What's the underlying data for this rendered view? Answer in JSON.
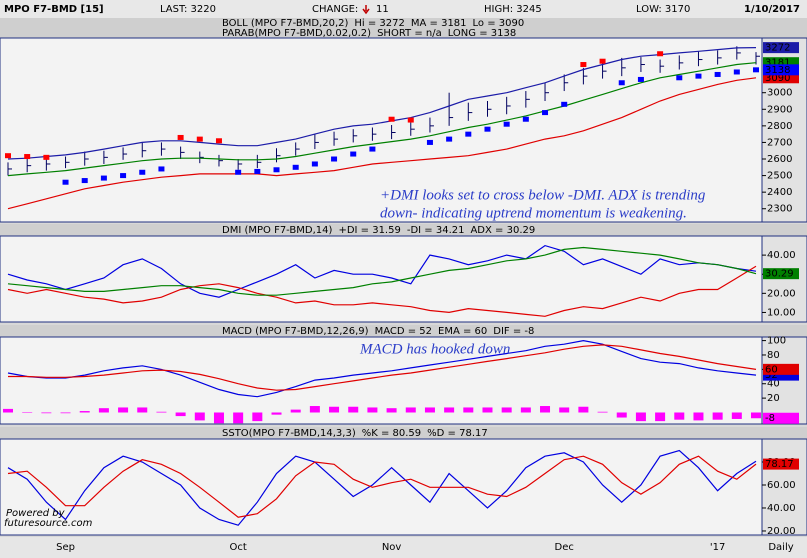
{
  "header": {
    "symbol": "MPO F7-BMD [15]",
    "last": "LAST: 3220",
    "change_label": "CHANGE:",
    "change": "11",
    "high": "HIGH: 3245",
    "low": "LOW: 3170",
    "date": "1/10/2017"
  },
  "footer": {
    "x_unit": "Daily",
    "watermark": [
      "Powered by",
      "futuresource.com"
    ]
  },
  "chart_data": [
    {
      "type": "ohlc",
      "legend_titles": [
        "BOLL (MPO F7-BMD,20,2)",
        "PARAB(MPO F7-BMD,0.02,0.2)"
      ],
      "bar_color": "#000060",
      "high": [
        2580,
        2600,
        2610,
        2615,
        2645,
        2650,
        2670,
        2700,
        2700,
        2675,
        2645,
        2625,
        2600,
        2625,
        2665,
        2700,
        2750,
        2765,
        2780,
        2790,
        2805,
        2820,
        2850,
        3000,
        2940,
        2950,
        2975,
        3010,
        3060,
        3110,
        3150,
        3180,
        3210,
        3215,
        3200,
        3225,
        3250,
        3255,
        3280,
        3245
      ],
      "low": [
        2500,
        2520,
        2530,
        2545,
        2560,
        2570,
        2595,
        2610,
        2620,
        2600,
        2575,
        2555,
        2535,
        2545,
        2580,
        2620,
        2660,
        2680,
        2700,
        2710,
        2720,
        2740,
        2760,
        2800,
        2830,
        2855,
        2870,
        2910,
        2950,
        3010,
        3050,
        3085,
        3100,
        3125,
        3120,
        3140,
        3160,
        3170,
        3200,
        3170
      ],
      "close": [
        2540,
        2560,
        2570,
        2580,
        2600,
        2610,
        2630,
        2650,
        2660,
        2640,
        2610,
        2590,
        2570,
        2580,
        2620,
        2660,
        2700,
        2720,
        2740,
        2750,
        2760,
        2780,
        2800,
        2850,
        2880,
        2900,
        2920,
        2960,
        3000,
        3060,
        3100,
        3130,
        3150,
        3170,
        3160,
        3180,
        3200,
        3210,
        3240,
        3220
      ],
      "ylim": [
        2220,
        3330
      ],
      "yticks": [
        2300,
        2400,
        2500,
        2600,
        2700,
        2800,
        2900,
        3000
      ],
      "series": [
        {
          "name": "Hi = 3272",
          "color": "#1c1ca8",
          "style": "line",
          "row": 0,
          "badge": true,
          "values": [
            2600,
            2605,
            2615,
            2625,
            2640,
            2660,
            2680,
            2700,
            2710,
            2710,
            2700,
            2690,
            2680,
            2680,
            2700,
            2720,
            2750,
            2780,
            2800,
            2810,
            2830,
            2850,
            2880,
            2920,
            2960,
            2980,
            3000,
            3030,
            3060,
            3100,
            3140,
            3170,
            3200,
            3220,
            3230,
            3240,
            3250,
            3260,
            3270,
            3272
          ]
        },
        {
          "name": "MA = 3181",
          "color": "#008000",
          "style": "line",
          "row": 0,
          "badge": true,
          "values": [
            2500,
            2510,
            2520,
            2530,
            2545,
            2560,
            2575,
            2590,
            2600,
            2605,
            2605,
            2600,
            2595,
            2595,
            2600,
            2615,
            2635,
            2655,
            2675,
            2690,
            2705,
            2720,
            2740,
            2765,
            2790,
            2810,
            2835,
            2860,
            2890,
            2920,
            2955,
            2990,
            3025,
            3060,
            3090,
            3110,
            3130,
            3150,
            3170,
            3181
          ]
        },
        {
          "name": "Lo = 3090",
          "color": "#e00000",
          "style": "line",
          "row": 0,
          "badge": true,
          "values": [
            2300,
            2330,
            2360,
            2390,
            2420,
            2440,
            2460,
            2475,
            2490,
            2500,
            2510,
            2510,
            2510,
            2510,
            2500,
            2510,
            2520,
            2530,
            2550,
            2570,
            2580,
            2590,
            2600,
            2610,
            2620,
            2640,
            2660,
            2690,
            2720,
            2740,
            2770,
            2810,
            2850,
            2900,
            2950,
            2990,
            3020,
            3050,
            3075,
            3090
          ]
        },
        {
          "name": "SHORT = n/a",
          "color": "#ff0000",
          "style": "dots",
          "row": 1,
          "badge": false,
          "values": [
            2620,
            2615,
            2610,
            null,
            null,
            null,
            null,
            null,
            null,
            2730,
            2720,
            2710,
            null,
            null,
            null,
            null,
            null,
            null,
            null,
            null,
            2840,
            2835,
            null,
            null,
            null,
            null,
            null,
            null,
            null,
            null,
            3170,
            3190,
            null,
            null,
            3235,
            null,
            null,
            null,
            null,
            null
          ]
        },
        {
          "name": "LONG = 3138",
          "color": "#0000ff",
          "style": "dots",
          "row": 1,
          "badge": true,
          "values": [
            null,
            null,
            null,
            2460,
            2470,
            2485,
            2500,
            2520,
            2540,
            null,
            null,
            null,
            2520,
            2525,
            2535,
            2550,
            2570,
            2600,
            2630,
            2660,
            null,
            null,
            2700,
            2720,
            2750,
            2780,
            2810,
            2840,
            2880,
            2930,
            null,
            null,
            3060,
            3080,
            null,
            3090,
            3100,
            3110,
            3125,
            3138
          ]
        }
      ],
      "annotation": [
        "+DMI looks set to cross below -DMI. ADX is trending",
        "down- indicating uptrend momentum is weakening."
      ]
    },
    {
      "type": "line",
      "legend_titles": [
        "DMI (MPO F7-BMD,14)"
      ],
      "ylim": [
        5,
        50
      ],
      "yticks": [
        {
          "value": 10,
          "label": "10.00"
        },
        {
          "value": 20,
          "label": "20.00"
        },
        {
          "value": 30,
          "label": "30.00"
        },
        {
          "value": 40,
          "label": "40.00"
        }
      ],
      "series": [
        {
          "name": "+DI = 31.59",
          "color": "#0000e0",
          "style": "line",
          "row": 0,
          "badge": false,
          "values": [
            30,
            27,
            25,
            22,
            25,
            28,
            35,
            38,
            33,
            25,
            20,
            18,
            22,
            26,
            30,
            35,
            28,
            32,
            30,
            30,
            28,
            25,
            40,
            38,
            35,
            37,
            40,
            38,
            45,
            42,
            35,
            38,
            34,
            30,
            38,
            35,
            36,
            35,
            33,
            31.59
          ]
        },
        {
          "name": "-DI = 34.21",
          "color": "#e00000",
          "style": "line",
          "row": 0,
          "badge": false,
          "values": [
            22,
            20,
            22,
            20,
            18,
            17,
            15,
            16,
            18,
            22,
            24,
            25,
            23,
            20,
            18,
            15,
            16,
            14,
            14,
            15,
            14,
            13,
            11,
            10,
            12,
            11,
            10,
            9,
            8,
            11,
            13,
            12,
            15,
            18,
            16,
            20,
            22,
            22,
            28,
            34.21
          ]
        },
        {
          "name": "ADX = 30.29",
          "color": "#008000",
          "style": "line",
          "row": 0,
          "badge": true,
          "values": [
            25,
            24,
            23,
            22,
            21,
            21,
            22,
            23,
            24,
            24,
            23,
            22,
            20,
            19,
            19,
            20,
            21,
            22,
            23,
            25,
            26,
            28,
            30,
            32,
            33,
            35,
            37,
            38,
            40,
            43,
            44,
            43,
            42,
            41,
            40,
            38,
            36,
            35,
            33,
            30.29
          ]
        }
      ]
    },
    {
      "type": "line",
      "legend_titles": [
        "MACD (MPO F7-BMD,12,26,9)"
      ],
      "ylim": [
        -16,
        105
      ],
      "yticks": [
        20,
        40,
        60,
        80,
        100
      ],
      "series": [
        {
          "name": "MACD = 52",
          "color": "#0000e0",
          "style": "line",
          "row": 0,
          "badge": true,
          "values": [
            55,
            50,
            48,
            48,
            52,
            58,
            62,
            65,
            60,
            52,
            42,
            32,
            25,
            22,
            28,
            36,
            45,
            48,
            52,
            55,
            58,
            62,
            66,
            70,
            74,
            78,
            82,
            86,
            92,
            95,
            100,
            95,
            85,
            75,
            70,
            68,
            62,
            58,
            55,
            52
          ]
        },
        {
          "name": "EMA = 60",
          "color": "#e00000",
          "style": "line",
          "row": 0,
          "badge": true,
          "values": [
            50,
            50,
            49,
            49,
            50,
            52,
            55,
            58,
            59,
            57,
            53,
            47,
            40,
            34,
            31,
            32,
            36,
            40,
            44,
            48,
            52,
            55,
            59,
            63,
            67,
            71,
            75,
            79,
            83,
            88,
            92,
            94,
            92,
            87,
            82,
            78,
            73,
            68,
            64,
            60
          ]
        },
        {
          "name": "DIF = -8",
          "color": "#ff00ff",
          "style": "bar",
          "row": 0,
          "badge": true,
          "values": [
            5,
            0,
            -1,
            -1,
            2,
            6,
            7,
            7,
            1,
            -5,
            -11,
            -15,
            -15,
            -12,
            -3,
            4,
            9,
            8,
            8,
            7,
            6,
            7,
            7,
            7,
            7,
            7,
            7,
            7,
            9,
            7,
            8,
            1,
            -7,
            -12,
            -12,
            -10,
            -11,
            -10,
            -9,
            -8
          ]
        }
      ],
      "annotation": [
        "MACD has hooked down"
      ]
    },
    {
      "type": "line",
      "legend_titles": [
        "SSTO(MPO F7-BMD,14,3,3)"
      ],
      "categories": [
        null,
        null,
        null,
        "Sep",
        null,
        null,
        null,
        null,
        null,
        null,
        null,
        null,
        "Oct",
        null,
        null,
        null,
        null,
        null,
        null,
        null,
        "Nov",
        null,
        null,
        null,
        null,
        null,
        null,
        null,
        null,
        "Dec",
        null,
        null,
        null,
        null,
        null,
        null,
        null,
        "'17",
        null,
        null
      ],
      "ylim": [
        16.5,
        100
      ],
      "yticks": [
        {
          "value": 20,
          "label": "20.00"
        },
        {
          "value": 40,
          "label": "40.00"
        },
        {
          "value": 60,
          "label": "60.00"
        },
        {
          "value": 80,
          "label": "80.00"
        }
      ],
      "series": [
        {
          "name": "%K = 80.59",
          "color": "#0000e0",
          "style": "line",
          "row": 0,
          "badge": false,
          "values": [
            75,
            65,
            45,
            30,
            55,
            75,
            85,
            80,
            70,
            60,
            40,
            30,
            25,
            45,
            70,
            85,
            80,
            65,
            50,
            60,
            75,
            60,
            45,
            70,
            55,
            40,
            55,
            75,
            85,
            88,
            80,
            60,
            45,
            60,
            85,
            90,
            75,
            55,
            70,
            80.59
          ]
        },
        {
          "name": "%D = 78.17",
          "color": "#e00000",
          "style": "line",
          "row": 0,
          "badge": true,
          "values": [
            70,
            72,
            58,
            42,
            42,
            58,
            72,
            82,
            78,
            70,
            58,
            45,
            32,
            35,
            48,
            68,
            80,
            78,
            65,
            58,
            62,
            65,
            58,
            58,
            58,
            52,
            50,
            58,
            70,
            82,
            85,
            78,
            62,
            52,
            62,
            78,
            85,
            72,
            65,
            78.17
          ]
        }
      ]
    }
  ]
}
